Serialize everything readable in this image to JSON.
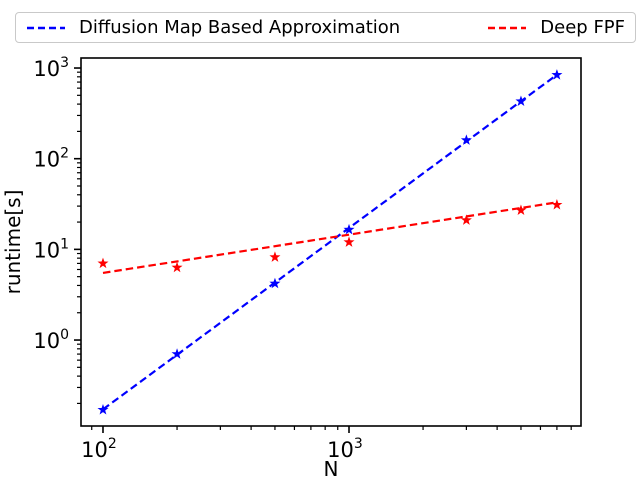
{
  "figure": {
    "background": "#ffffff"
  },
  "legend": {
    "position": "top-outside",
    "entries": [
      {
        "label": "Diffusion Map Based Approximation",
        "color": "#0000ff",
        "line_style": "dashed"
      },
      {
        "label": "Deep FPF",
        "color": "#ff0000",
        "line_style": "dashed"
      }
    ]
  },
  "chart_data": {
    "type": "scatter",
    "title": "",
    "xlabel": "N",
    "ylabel": "runtime[s]",
    "x_scale": "log",
    "y_scale": "log",
    "xlim": [
      81.4,
      8770
    ],
    "ylim": [
      0.1127,
      1290
    ],
    "grid": false,
    "x_ticks": [
      {
        "value": 100,
        "exponent": 2
      },
      {
        "value": 1000,
        "exponent": 3
      }
    ],
    "y_ticks": [
      {
        "value": 1,
        "exponent": 0
      },
      {
        "value": 10,
        "exponent": 1
      },
      {
        "value": 100,
        "exponent": 2
      },
      {
        "value": 1000,
        "exponent": 3
      }
    ],
    "x": [
      100,
      200,
      500,
      1000,
      3000,
      5000,
      7000
    ],
    "series": [
      {
        "name": "Diffusion Map Based Approximation",
        "color": "#0000ff",
        "marker": "star",
        "values": [
          0.17,
          0.7,
          4.2,
          16.5,
          160,
          430,
          840
        ],
        "fit_line": {
          "x": [
            100,
            7000
          ],
          "y": [
            0.172,
            843
          ]
        }
      },
      {
        "name": "Deep FPF",
        "color": "#ff0000",
        "marker": "star",
        "values": [
          7,
          6.3,
          8.2,
          12,
          21,
          27,
          31
        ],
        "fit_line": {
          "x": [
            100,
            7000
          ],
          "y": [
            5.5,
            33
          ]
        }
      }
    ]
  }
}
